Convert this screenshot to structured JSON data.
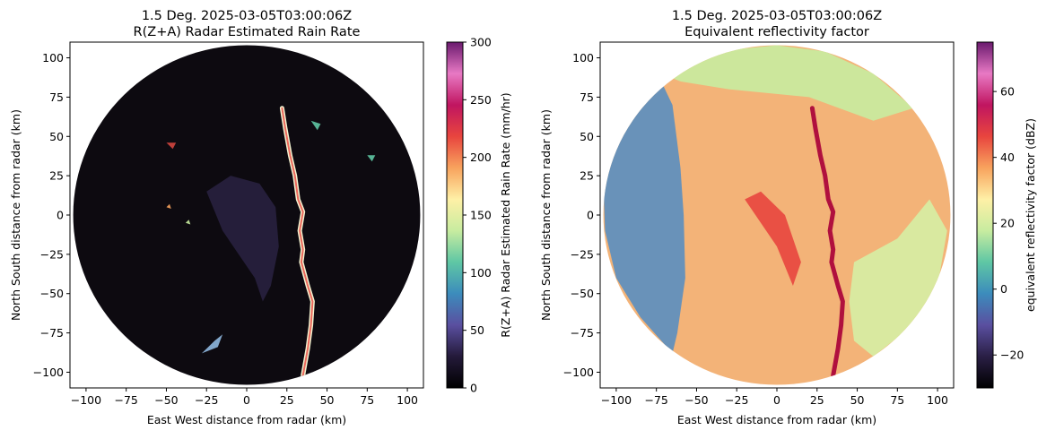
{
  "chart_data": [
    {
      "type": "heatmap",
      "variant": "radar-ppi",
      "title_line1": "1.5 Deg. 2025-03-05T03:00:06Z",
      "title_line2": "R(Z+A) Radar Estimated Rain Rate",
      "xlabel": "East West distance from radar (km)",
      "ylabel": "North South distance from radar (km)",
      "xlim": [
        -110,
        110
      ],
      "ylim": [
        -110,
        110
      ],
      "xticks": [
        -100,
        -75,
        -50,
        -25,
        0,
        25,
        50,
        75,
        100
      ],
      "yticks": [
        -100,
        -75,
        -50,
        -25,
        0,
        25,
        50,
        75,
        100
      ],
      "range_km": 108,
      "background": "#0d0a10",
      "colorbar": {
        "label": "R(Z+A) Radar Estimated Rain Rate (mm/hr)",
        "min": 0,
        "max": 300,
        "ticks": [
          0,
          50,
          100,
          150,
          200,
          250,
          300
        ],
        "colors": [
          "#000000",
          "#241a3a",
          "#5a4fa0",
          "#3c8cbc",
          "#5fc7a4",
          "#c8eca0",
          "#fef0a6",
          "#f8a35e",
          "#e8453e",
          "#c01560",
          "#e879c4",
          "#6a1a6e"
        ]
      },
      "features": [
        {
          "kind": "squall-line",
          "color": "#f2f2d0",
          "points": [
            [
              22,
              68
            ],
            [
              24,
              55
            ],
            [
              27,
              38
            ],
            [
              30,
              25
            ],
            [
              32,
              10
            ],
            [
              35,
              2
            ],
            [
              33,
              -10
            ],
            [
              35,
              -22
            ],
            [
              34,
              -30
            ],
            [
              38,
              -45
            ],
            [
              41,
              -55
            ],
            [
              40,
              -70
            ],
            [
              38,
              -85
            ],
            [
              35,
              -102
            ]
          ]
        },
        {
          "kind": "stratiform-haze",
          "color": "#2e2648",
          "points": [
            [
              -25,
              15
            ],
            [
              -15,
              -10
            ],
            [
              -5,
              -25
            ],
            [
              5,
              -40
            ],
            [
              10,
              -55
            ],
            [
              15,
              -45
            ],
            [
              20,
              -20
            ],
            [
              18,
              5
            ],
            [
              8,
              20
            ],
            [
              -10,
              25
            ]
          ]
        },
        {
          "kind": "cell",
          "color": "#d1453f",
          "points": [
            [
              -50,
              46
            ],
            [
              -46,
              42
            ],
            [
              -44,
              46
            ]
          ]
        },
        {
          "kind": "cell",
          "color": "#5fc7a4",
          "points": [
            [
              40,
              60
            ],
            [
              44,
              54
            ],
            [
              46,
              58
            ]
          ]
        },
        {
          "kind": "cell",
          "color": "#5fc7a4",
          "points": [
            [
              75,
              38
            ],
            [
              78,
              34
            ],
            [
              80,
              38
            ]
          ]
        },
        {
          "kind": "cell",
          "color": "#8fb8e0",
          "points": [
            [
              -28,
              -88
            ],
            [
              -20,
              -80
            ],
            [
              -15,
              -76
            ],
            [
              -18,
              -84
            ]
          ]
        },
        {
          "kind": "cell",
          "color": "#f8a35e",
          "points": [
            [
              -50,
              5
            ],
            [
              -48,
              7
            ],
            [
              -47,
              4
            ]
          ]
        },
        {
          "kind": "cell",
          "color": "#c8eca0",
          "points": [
            [
              -38,
              -5
            ],
            [
              -36,
              -3
            ],
            [
              -35,
              -6
            ]
          ]
        }
      ]
    },
    {
      "type": "heatmap",
      "variant": "radar-ppi",
      "title_line1": "1.5 Deg. 2025-03-05T03:00:06Z",
      "title_line2": "Equivalent reflectivity factor",
      "xlabel": "East West distance from radar (km)",
      "ylabel": "North South distance from radar (km)",
      "xlim": [
        -110,
        110
      ],
      "ylim": [
        -110,
        110
      ],
      "xticks": [
        -100,
        -75,
        -50,
        -25,
        0,
        25,
        50,
        75,
        100
      ],
      "yticks": [
        -100,
        -75,
        -50,
        -25,
        0,
        25,
        50,
        75,
        100
      ],
      "range_km": 108,
      "background": "#f3b378",
      "colorbar": {
        "label": "equivalent reflectivity factor (dBZ)",
        "min": -30,
        "max": 75,
        "ticks": [
          -20,
          0,
          20,
          40,
          60
        ],
        "colors": [
          "#000000",
          "#2a1f45",
          "#5a4fa0",
          "#3c8cbc",
          "#5fc7a4",
          "#c8eca0",
          "#fef0a6",
          "#f8a35e",
          "#e8453e",
          "#c01560",
          "#e879c4",
          "#6a1a6e"
        ]
      },
      "features": [
        {
          "kind": "clear-air-west",
          "color": "#5a8ec0",
          "points": [
            [
              -108,
              20
            ],
            [
              -100,
              45
            ],
            [
              -85,
              70
            ],
            [
              -72,
              85
            ],
            [
              -65,
              70
            ],
            [
              -60,
              30
            ],
            [
              -58,
              0
            ],
            [
              -57,
              -40
            ],
            [
              -62,
              -75
            ],
            [
              -65,
              -88
            ],
            [
              -85,
              -65
            ],
            [
              -100,
              -40
            ],
            [
              -107,
              -10
            ]
          ]
        },
        {
          "kind": "transition",
          "color": "#c8eca0",
          "points": [
            [
              -72,
              90
            ],
            [
              -40,
              104
            ],
            [
              0,
              108
            ],
            [
              30,
              104
            ],
            [
              60,
              90
            ],
            [
              85,
              68
            ],
            [
              60,
              60
            ],
            [
              20,
              75
            ],
            [
              -30,
              80
            ],
            [
              -60,
              85
            ]
          ]
        },
        {
          "kind": "transition",
          "color": "#d6eea4",
          "points": [
            [
              48,
              -30
            ],
            [
              75,
              -15
            ],
            [
              95,
              10
            ],
            [
              106,
              -10
            ],
            [
              100,
              -45
            ],
            [
              85,
              -70
            ],
            [
              60,
              -90
            ],
            [
              48,
              -80
            ],
            [
              45,
              -55
            ]
          ]
        },
        {
          "kind": "squall-line",
          "color": "#b0103e",
          "points": [
            [
              22,
              68
            ],
            [
              24,
              55
            ],
            [
              27,
              38
            ],
            [
              30,
              25
            ],
            [
              32,
              10
            ],
            [
              35,
              2
            ],
            [
              33,
              -10
            ],
            [
              35,
              -22
            ],
            [
              34,
              -30
            ],
            [
              38,
              -45
            ],
            [
              41,
              -55
            ],
            [
              40,
              -70
            ],
            [
              38,
              -85
            ],
            [
              35,
              -102
            ]
          ]
        },
        {
          "kind": "core",
          "color": "#e8453e",
          "points": [
            [
              -20,
              10
            ],
            [
              0,
              -20
            ],
            [
              10,
              -45
            ],
            [
              15,
              -30
            ],
            [
              5,
              0
            ],
            [
              -10,
              15
            ]
          ]
        }
      ]
    }
  ]
}
